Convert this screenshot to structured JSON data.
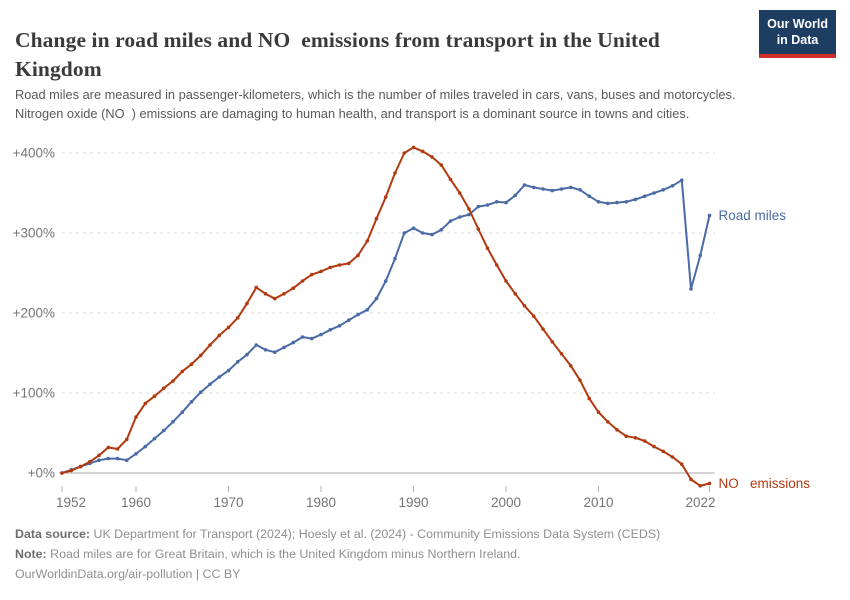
{
  "header": {
    "title": "Change in road miles and NO  emissions from transport in the United Kingdom",
    "subtitle": "Road miles are measured in passenger-kilometers, which is the number of miles traveled in cars, vans, buses and motorcycles. Nitrogen oxide (NO  ) emissions are damaging to human health, and transport is a dominant source in towns and cities.",
    "logo": {
      "line1": "Our World",
      "line2": "in Data"
    }
  },
  "footer": {
    "source_label": "Data source:",
    "source_text": " UK Department for Transport (2024); Hoesly et al. (2024) - Community Emissions Data System (CEDS)",
    "note_label": "Note:",
    "note_text": " Road miles are for Great Britain, which is the United Kingdom minus Northern Ireland.",
    "link_text": "OurWorldinData.org/air-pollution | CC BY"
  },
  "chart_data": {
    "type": "line",
    "x_label_years": [
      1952,
      1960,
      1970,
      1980,
      1990,
      2000,
      2010,
      2022
    ],
    "y_ticks": [
      {
        "value": 0,
        "label": "+0%"
      },
      {
        "value": 100,
        "label": "+100%"
      },
      {
        "value": 200,
        "label": "+200%"
      },
      {
        "value": 300,
        "label": "+300%"
      },
      {
        "value": 400,
        "label": "+400%"
      }
    ],
    "x_start": 1952,
    "x_end": 2022,
    "ylim": [
      -25,
      420
    ],
    "grid": "dashed horizontal lines at each 100% step, solid gray line at 0%",
    "legend_position": "labels at right end of each line",
    "colors": {
      "road_miles": "#4A6BA5",
      "nox": "#B23A10",
      "grid": "#dadada",
      "zero_line": "#a9a9a9",
      "tick_text": "#757575"
    },
    "series": [
      {
        "name": "Road miles",
        "label": "Road miles",
        "color": "#4A6BA5",
        "values": [
          0,
          4,
          8,
          12,
          16,
          18,
          18,
          16,
          24,
          33,
          43,
          53,
          64,
          76,
          89,
          101,
          111,
          120,
          128,
          139,
          148,
          160,
          154,
          151,
          157,
          163,
          170,
          168,
          173,
          179,
          184,
          191,
          198,
          204,
          218,
          240,
          268,
          300,
          306,
          300,
          298,
          304,
          315,
          320,
          323,
          333,
          335,
          339,
          338,
          347,
          360,
          357,
          355,
          353,
          355,
          357,
          354,
          346,
          339,
          337,
          338,
          339,
          342,
          346,
          350,
          354,
          359,
          366,
          230,
          272,
          322
        ]
      },
      {
        "name": "NOx emissions",
        "label": "NO   emissions",
        "color": "#B23A10",
        "values": [
          0,
          3,
          8,
          14,
          22,
          32,
          30,
          42,
          70,
          87,
          96,
          106,
          115,
          127,
          136,
          147,
          160,
          172,
          182,
          194,
          212,
          232,
          224,
          218,
          224,
          231,
          240,
          248,
          252,
          257,
          260,
          262,
          272,
          290,
          318,
          345,
          375,
          400,
          407,
          402,
          395,
          385,
          367,
          350,
          330,
          305,
          281,
          260,
          240,
          224,
          209,
          196,
          180,
          164,
          149,
          134,
          116,
          93,
          76,
          64,
          54,
          46,
          44,
          40,
          33,
          27,
          20,
          11,
          -8,
          -16,
          -13
        ]
      }
    ]
  }
}
